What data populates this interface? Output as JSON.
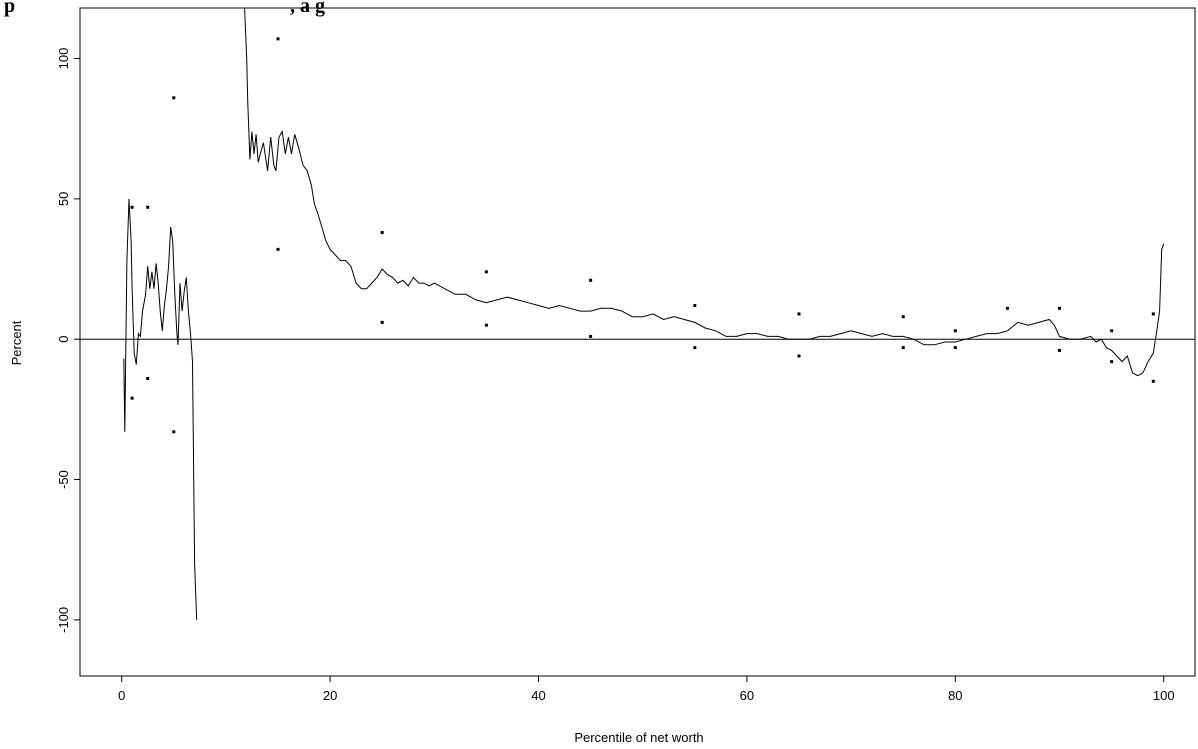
{
  "chart_data": {
    "type": "line",
    "title": "p",
    "title_rest": ", a g",
    "xlabel": "Percentile of net worth",
    "ylabel": "Percent",
    "xlim": [
      -4,
      103
    ],
    "ylim": [
      -120,
      118
    ],
    "x_ticks": [
      0,
      20,
      40,
      60,
      80,
      100
    ],
    "y_ticks": [
      -100,
      -50,
      0,
      50,
      100
    ],
    "x_tick_labels": [
      "0",
      "20",
      "40",
      "60",
      "80",
      "100"
    ],
    "y_tick_labels": [
      "-100",
      "-50",
      "0",
      "50",
      "100"
    ],
    "reference_line": {
      "y": 0
    },
    "grid": false,
    "colors": {
      "line": "#000000",
      "reference": "#000000",
      "points": "#000000"
    },
    "series": [
      {
        "style": "line",
        "segments": [
          [
            [
              0.2,
              -7
            ],
            [
              0.3,
              -33
            ],
            [
              0.5,
              28
            ],
            [
              0.7,
              50
            ],
            [
              0.9,
              35
            ],
            [
              1.0,
              18
            ],
            [
              1.2,
              -5
            ],
            [
              1.4,
              -9
            ],
            [
              1.6,
              2
            ],
            [
              1.8,
              1
            ],
            [
              2.0,
              10
            ],
            [
              2.2,
              14
            ],
            [
              2.3,
              16
            ],
            [
              2.5,
              26
            ],
            [
              2.7,
              18
            ],
            [
              2.9,
              24
            ],
            [
              3.1,
              18
            ],
            [
              3.3,
              27
            ],
            [
              3.5,
              20
            ],
            [
              3.7,
              10
            ],
            [
              3.9,
              3
            ],
            [
              4.1,
              12
            ],
            [
              4.3,
              18
            ],
            [
              4.5,
              26
            ],
            [
              4.7,
              40
            ],
            [
              4.9,
              35
            ],
            [
              5.1,
              16
            ],
            [
              5.3,
              2
            ],
            [
              5.4,
              -2
            ],
            [
              5.6,
              20
            ],
            [
              5.8,
              10
            ],
            [
              6.0,
              17
            ],
            [
              6.2,
              22
            ],
            [
              6.4,
              10
            ],
            [
              6.6,
              2
            ],
            [
              6.8,
              -8
            ],
            [
              7.0,
              -80
            ],
            [
              7.2,
              -100
            ]
          ],
          [
            [
              11.8,
              118
            ],
            [
              12.0,
              100
            ],
            [
              12.1,
              84
            ],
            [
              12.3,
              64
            ],
            [
              12.5,
              74
            ],
            [
              12.7,
              66
            ],
            [
              12.9,
              73
            ],
            [
              13.1,
              63
            ],
            [
              13.3,
              66
            ],
            [
              13.6,
              70
            ],
            [
              14.0,
              60
            ],
            [
              14.3,
              72
            ],
            [
              14.6,
              62
            ],
            [
              14.8,
              60
            ],
            [
              15.1,
              72
            ],
            [
              15.4,
              74
            ],
            [
              15.7,
              66
            ],
            [
              16.0,
              72
            ],
            [
              16.3,
              66
            ],
            [
              16.6,
              73
            ],
            [
              17.0,
              68
            ],
            [
              17.4,
              62
            ],
            [
              17.8,
              60
            ],
            [
              18.2,
              55
            ],
            [
              18.5,
              48
            ],
            [
              18.8,
              45
            ],
            [
              19.2,
              40
            ],
            [
              19.6,
              35
            ],
            [
              20.0,
              32
            ],
            [
              20.5,
              30
            ],
            [
              21.0,
              28
            ],
            [
              21.5,
              28
            ],
            [
              22.0,
              26
            ],
            [
              22.5,
              20
            ],
            [
              23.0,
              18
            ],
            [
              23.5,
              18
            ],
            [
              24.0,
              20
            ],
            [
              24.5,
              22
            ],
            [
              25.0,
              25
            ],
            [
              25.5,
              23
            ],
            [
              26.0,
              22
            ],
            [
              26.5,
              20
            ],
            [
              27.0,
              21
            ],
            [
              27.5,
              19
            ],
            [
              28.0,
              22
            ],
            [
              28.5,
              20
            ],
            [
              29.0,
              20
            ],
            [
              29.5,
              19
            ],
            [
              30.0,
              20
            ],
            [
              31.0,
              18
            ],
            [
              32.0,
              16
            ],
            [
              33.0,
              16
            ],
            [
              34.0,
              14
            ],
            [
              35.0,
              13
            ],
            [
              36.0,
              14
            ],
            [
              37.0,
              15
            ],
            [
              38.0,
              14
            ],
            [
              39.0,
              13
            ],
            [
              40.0,
              12
            ],
            [
              41.0,
              11
            ],
            [
              42.0,
              12
            ],
            [
              43.0,
              11
            ],
            [
              44.0,
              10
            ],
            [
              45.0,
              10
            ],
            [
              46.0,
              11
            ],
            [
              47.0,
              11
            ],
            [
              48.0,
              10
            ],
            [
              49.0,
              8
            ],
            [
              50.0,
              8
            ],
            [
              51.0,
              9
            ],
            [
              52.0,
              7
            ],
            [
              53.0,
              8
            ],
            [
              54.0,
              7
            ],
            [
              55.0,
              6
            ],
            [
              56.0,
              4
            ],
            [
              57.0,
              3
            ],
            [
              58.0,
              1
            ],
            [
              59.0,
              1
            ],
            [
              60.0,
              2
            ],
            [
              61.0,
              2
            ],
            [
              62.0,
              1
            ],
            [
              63.0,
              1
            ],
            [
              64.0,
              0
            ],
            [
              65.0,
              0
            ],
            [
              66.0,
              0
            ],
            [
              67.0,
              1
            ],
            [
              68.0,
              1
            ],
            [
              69.0,
              2
            ],
            [
              70.0,
              3
            ],
            [
              71.0,
              2
            ],
            [
              72.0,
              1
            ],
            [
              73.0,
              2
            ],
            [
              74.0,
              1
            ],
            [
              75.0,
              1
            ],
            [
              76.0,
              0
            ],
            [
              77.0,
              -2
            ],
            [
              78.0,
              -2
            ],
            [
              79.0,
              -1
            ],
            [
              80.0,
              -1
            ],
            [
              81.0,
              0
            ],
            [
              82.0,
              1
            ],
            [
              83.0,
              2
            ],
            [
              84.0,
              2
            ],
            [
              85.0,
              3
            ],
            [
              86.0,
              6
            ],
            [
              87.0,
              5
            ],
            [
              88.0,
              6
            ],
            [
              89.0,
              7
            ],
            [
              89.5,
              5
            ],
            [
              90.0,
              1
            ],
            [
              91.0,
              0
            ],
            [
              92.0,
              0
            ],
            [
              93.0,
              1
            ],
            [
              93.5,
              -1
            ],
            [
              94.0,
              0
            ],
            [
              94.5,
              -3
            ],
            [
              95.0,
              -4
            ],
            [
              95.5,
              -6
            ],
            [
              96.0,
              -8
            ],
            [
              96.5,
              -6
            ],
            [
              97.0,
              -12
            ],
            [
              97.5,
              -13
            ],
            [
              98.0,
              -12
            ],
            [
              98.5,
              -8
            ],
            [
              99.0,
              -5
            ],
            [
              99.3,
              2
            ],
            [
              99.6,
              10
            ],
            [
              99.8,
              32
            ],
            [
              100.0,
              34
            ]
          ]
        ]
      },
      {
        "style": "points",
        "points": [
          [
            1.0,
            47
          ],
          [
            1.0,
            -21
          ],
          [
            2.5,
            47
          ],
          [
            2.5,
            -14
          ],
          [
            5.0,
            86
          ],
          [
            5.0,
            -33
          ],
          [
            15.0,
            107
          ],
          [
            15.0,
            32
          ],
          [
            25.0,
            38
          ],
          [
            25.0,
            6
          ],
          [
            35.0,
            24
          ],
          [
            35.0,
            5
          ],
          [
            45.0,
            21
          ],
          [
            45.0,
            1
          ],
          [
            55.0,
            12
          ],
          [
            55.0,
            -3
          ],
          [
            65.0,
            9
          ],
          [
            65.0,
            -6
          ],
          [
            75.0,
            8
          ],
          [
            75.0,
            -3
          ],
          [
            80.0,
            3
          ],
          [
            80.0,
            -3
          ],
          [
            85.0,
            11
          ],
          [
            90.0,
            11
          ],
          [
            90.0,
            -4
          ],
          [
            95.0,
            3
          ],
          [
            95.0,
            -8
          ],
          [
            99.0,
            9
          ],
          [
            99.0,
            -15
          ]
        ]
      }
    ]
  }
}
